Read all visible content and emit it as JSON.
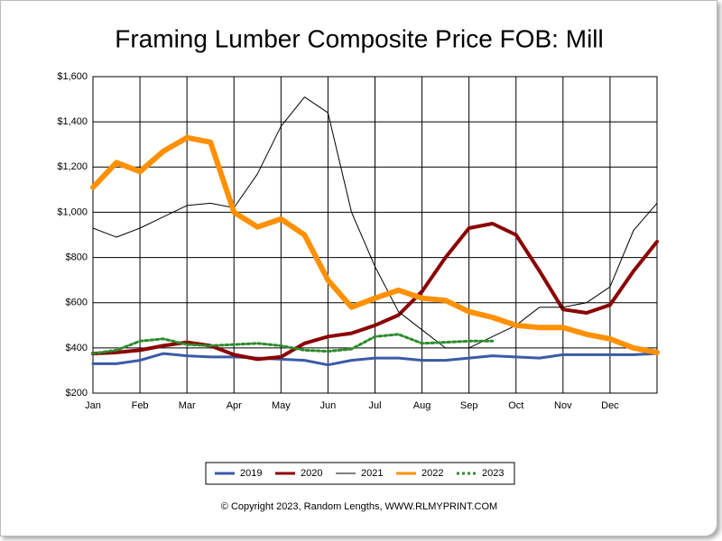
{
  "chart_data": {
    "type": "line",
    "title": "Framing Lumber Composite Price FOB: Mill",
    "footnote": "© Copyright 2023, Random Lengths, WWW.RLMYPRINT.COM",
    "categories": [
      "Jan",
      null,
      "Feb",
      null,
      "Mar",
      null,
      "Apr",
      null,
      "May",
      null,
      "Jun",
      null,
      "Jul",
      null,
      "Aug",
      null,
      "Sep",
      null,
      "Oct",
      null,
      "Nov",
      null,
      "Dec",
      null,
      null
    ],
    "ylim": [
      200,
      1600
    ],
    "yticks": [
      {
        "value": 200,
        "label": "$200"
      },
      {
        "value": 400,
        "label": "$400"
      },
      {
        "value": 600,
        "label": "$600"
      },
      {
        "value": 800,
        "label": "$800"
      },
      {
        "value": 1000,
        "label": "$1,000"
      },
      {
        "value": 1200,
        "label": "$1,200"
      },
      {
        "value": 1400,
        "label": "$1,400"
      },
      {
        "value": 1600,
        "label": "$1,600"
      }
    ],
    "grid": true,
    "legend": "bottom",
    "series": [
      {
        "name": "2019",
        "color": "#3a5ba8",
        "values": [
          330,
          330,
          345,
          375,
          365,
          360,
          360,
          355,
          350,
          345,
          325,
          345,
          355,
          355,
          345,
          345,
          355,
          365,
          360,
          355,
          370,
          370,
          370,
          370,
          375
        ]
      },
      {
        "name": "2020",
        "color": "#8b0000",
        "values": [
          375,
          380,
          390,
          410,
          425,
          410,
          370,
          350,
          360,
          420,
          450,
          465,
          500,
          545,
          650,
          800,
          930,
          950,
          900,
          740,
          570,
          555,
          590,
          740,
          870
        ]
      },
      {
        "name": "2021",
        "color": "#000000",
        "values": [
          930,
          890,
          930,
          980,
          1030,
          1040,
          1020,
          1170,
          1380,
          1510,
          1440,
          1000,
          760,
          560,
          480,
          400,
          400,
          450,
          500,
          580,
          580,
          600,
          670,
          920,
          1040
        ]
      },
      {
        "name": "2022",
        "color": "#ff9000",
        "values": [
          1110,
          1220,
          1180,
          1270,
          1330,
          1310,
          1000,
          935,
          970,
          900,
          700,
          580,
          620,
          655,
          620,
          610,
          560,
          535,
          500,
          490,
          490,
          460,
          440,
          400,
          380
        ]
      },
      {
        "name": "2023",
        "color": "#2e8b2e",
        "values": [
          375,
          390,
          430,
          440,
          415,
          410,
          415,
          420,
          410,
          390,
          385,
          395,
          450,
          460,
          420,
          425,
          430,
          430,
          null,
          null,
          null,
          null,
          null,
          null,
          null
        ]
      }
    ]
  }
}
